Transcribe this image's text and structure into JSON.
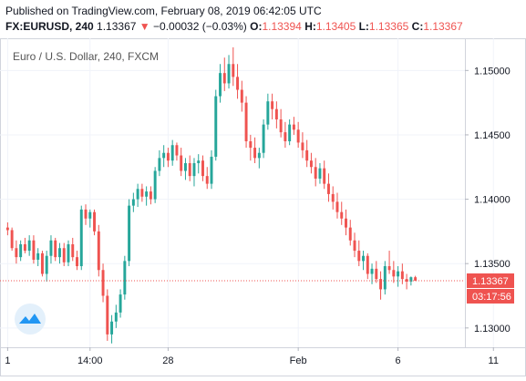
{
  "header": {
    "published": "Published on TradingView.com, February 08, 2019 06:42:05 UTC",
    "symbol": "FX:EURUSD, 240",
    "last": "1.13367",
    "change_arrow": "▼",
    "change": "−0.00032 (−0.03%)",
    "o_label": "O:",
    "o_value": "1.13394",
    "h_label": "H:",
    "h_value": "1.13405",
    "l_label": "L:",
    "l_value": "1.13365",
    "c_label": "C:",
    "c_value": "1.13367"
  },
  "chart_data": {
    "type": "candlestick",
    "title": "Euro / U.S. Dollar, 240, FXCM",
    "ylim": [
      1.1285,
      1.1525
    ],
    "y_ticks": [
      1.13,
      1.135,
      1.14,
      1.145,
      1.15
    ],
    "y_tick_labels": [
      "1.13000",
      "1.13500",
      "1.14000",
      "1.14500",
      "1.15000"
    ],
    "x_ticks": [
      {
        "label": "1",
        "index": 0
      },
      {
        "label": "14:00",
        "index": 19
      },
      {
        "label": "28",
        "index": 37
      },
      {
        "label": "Feb",
        "index": 67
      },
      {
        "label": "6",
        "index": 90
      },
      {
        "label": "11",
        "index": 112
      }
    ],
    "last_price_label": "1.13367",
    "countdown_label": "03:17:56",
    "last_price": 1.13367,
    "colors": {
      "up": "#26a69a",
      "down": "#ef5350",
      "last_line": "#ef5350",
      "countdown_bg": "#ef5350"
    },
    "candles": [
      [
        1.1378,
        1.1382,
        1.1372,
        1.1376
      ],
      [
        1.1376,
        1.1378,
        1.136,
        1.1362
      ],
      [
        1.1362,
        1.1368,
        1.135,
        1.1355
      ],
      [
        1.1355,
        1.1368,
        1.1352,
        1.1365
      ],
      [
        1.1365,
        1.137,
        1.1358,
        1.136
      ],
      [
        1.136,
        1.1372,
        1.1356,
        1.1368
      ],
      [
        1.1368,
        1.1372,
        1.135,
        1.1353
      ],
      [
        1.1353,
        1.1362,
        1.1348,
        1.1358
      ],
      [
        1.1358,
        1.136,
        1.134,
        1.1342
      ],
      [
        1.1342,
        1.136,
        1.1336,
        1.1356
      ],
      [
        1.1356,
        1.1372,
        1.135,
        1.1368
      ],
      [
        1.1368,
        1.137,
        1.1352,
        1.1355
      ],
      [
        1.1355,
        1.1366,
        1.135,
        1.1362
      ],
      [
        1.1362,
        1.1366,
        1.1348,
        1.1351
      ],
      [
        1.1351,
        1.1368,
        1.1348,
        1.1365
      ],
      [
        1.1365,
        1.137,
        1.1352,
        1.1355
      ],
      [
        1.1355,
        1.136,
        1.1345,
        1.1348
      ],
      [
        1.1348,
        1.1395,
        1.1345,
        1.1392
      ],
      [
        1.1392,
        1.1396,
        1.138,
        1.1385
      ],
      [
        1.1385,
        1.1392,
        1.1378,
        1.139
      ],
      [
        1.139,
        1.1392,
        1.1372,
        1.1375
      ],
      [
        1.1375,
        1.138,
        1.134,
        1.1345
      ],
      [
        1.1345,
        1.135,
        1.132,
        1.1325
      ],
      [
        1.1325,
        1.133,
        1.129,
        1.1295
      ],
      [
        1.1295,
        1.131,
        1.1288,
        1.1305
      ],
      [
        1.1305,
        1.1318,
        1.13,
        1.1312
      ],
      [
        1.1312,
        1.133,
        1.1308,
        1.1326
      ],
      [
        1.1326,
        1.1356,
        1.1322,
        1.1352
      ],
      [
        1.1352,
        1.14,
        1.1348,
        1.1395
      ],
      [
        1.1395,
        1.1405,
        1.139,
        1.14
      ],
      [
        1.14,
        1.1412,
        1.1394,
        1.1408
      ],
      [
        1.1408,
        1.1412,
        1.1398,
        1.1402
      ],
      [
        1.1402,
        1.141,
        1.1395,
        1.1406
      ],
      [
        1.1406,
        1.141,
        1.1396,
        1.14
      ],
      [
        1.14,
        1.1425,
        1.1397,
        1.1422
      ],
      [
        1.1422,
        1.1438,
        1.1418,
        1.1432
      ],
      [
        1.1432,
        1.1442,
        1.1425,
        1.1436
      ],
      [
        1.1436,
        1.144,
        1.1425,
        1.143
      ],
      [
        1.143,
        1.1446,
        1.1426,
        1.1442
      ],
      [
        1.1442,
        1.1444,
        1.143,
        1.1434
      ],
      [
        1.1434,
        1.144,
        1.1418,
        1.1422
      ],
      [
        1.1422,
        1.1432,
        1.1415,
        1.1428
      ],
      [
        1.1428,
        1.1434,
        1.1414,
        1.1418
      ],
      [
        1.1418,
        1.1432,
        1.141,
        1.1428
      ],
      [
        1.1428,
        1.1435,
        1.142,
        1.143
      ],
      [
        1.143,
        1.1434,
        1.1414,
        1.1418
      ],
      [
        1.1418,
        1.1425,
        1.1408,
        1.1412
      ],
      [
        1.1412,
        1.1438,
        1.1408,
        1.1433
      ],
      [
        1.1433,
        1.1485,
        1.143,
        1.148
      ],
      [
        1.148,
        1.1505,
        1.1475,
        1.1498
      ],
      [
        1.1498,
        1.151,
        1.1484,
        1.149
      ],
      [
        1.149,
        1.1512,
        1.1486,
        1.1505
      ],
      [
        1.1505,
        1.1518,
        1.1488,
        1.1495
      ],
      [
        1.1495,
        1.1505,
        1.1478,
        1.1485
      ],
      [
        1.1485,
        1.1492,
        1.1468,
        1.1475
      ],
      [
        1.1475,
        1.148,
        1.144,
        1.1445
      ],
      [
        1.1445,
        1.145,
        1.143,
        1.144
      ],
      [
        1.144,
        1.1448,
        1.1428,
        1.1432
      ],
      [
        1.1432,
        1.144,
        1.1424,
        1.1436
      ],
      [
        1.1436,
        1.1462,
        1.1432,
        1.1458
      ],
      [
        1.1458,
        1.1482,
        1.1454,
        1.1476
      ],
      [
        1.1476,
        1.1482,
        1.1462,
        1.147
      ],
      [
        1.147,
        1.1476,
        1.1455,
        1.1462
      ],
      [
        1.1462,
        1.147,
        1.1448,
        1.1452
      ],
      [
        1.1452,
        1.146,
        1.144,
        1.1445
      ],
      [
        1.1445,
        1.1462,
        1.1442,
        1.1458
      ],
      [
        1.1458,
        1.1464,
        1.145,
        1.1454
      ],
      [
        1.1454,
        1.146,
        1.144,
        1.1444
      ],
      [
        1.1444,
        1.1452,
        1.1432,
        1.1438
      ],
      [
        1.1438,
        1.1446,
        1.1425,
        1.143
      ],
      [
        1.143,
        1.1436,
        1.142,
        1.1425
      ],
      [
        1.1425,
        1.1432,
        1.141,
        1.1416
      ],
      [
        1.1416,
        1.1428,
        1.1412,
        1.1424
      ],
      [
        1.1424,
        1.143,
        1.1408,
        1.1412
      ],
      [
        1.1412,
        1.142,
        1.1398,
        1.1404
      ],
      [
        1.1404,
        1.141,
        1.1392,
        1.1398
      ],
      [
        1.1398,
        1.1405,
        1.1385,
        1.139
      ],
      [
        1.139,
        1.1398,
        1.138,
        1.1385
      ],
      [
        1.1385,
        1.1392,
        1.1372,
        1.1378
      ],
      [
        1.1378,
        1.1384,
        1.1364,
        1.1368
      ],
      [
        1.1368,
        1.1374,
        1.1355,
        1.136
      ],
      [
        1.136,
        1.1368,
        1.1348,
        1.1352
      ],
      [
        1.1352,
        1.136,
        1.1345,
        1.1356
      ],
      [
        1.1356,
        1.1358,
        1.1338,
        1.1342
      ],
      [
        1.1342,
        1.135,
        1.1334,
        1.1346
      ],
      [
        1.1346,
        1.1352,
        1.1335,
        1.1338
      ],
      [
        1.1338,
        1.1344,
        1.1322,
        1.133
      ],
      [
        1.133,
        1.1352,
        1.1326,
        1.1348
      ],
      [
        1.1348,
        1.136,
        1.1342,
        1.1345
      ],
      [
        1.1345,
        1.1352,
        1.1335,
        1.134
      ],
      [
        1.134,
        1.1348,
        1.1332,
        1.1344
      ],
      [
        1.1344,
        1.135,
        1.1334,
        1.1338
      ],
      [
        1.1338,
        1.1342,
        1.133,
        1.1336
      ],
      [
        1.1336,
        1.134,
        1.1333,
        1.13394
      ],
      [
        1.13394,
        1.13405,
        1.13365,
        1.13367
      ]
    ]
  },
  "icons": {
    "logo": "tradingview-logo-icon"
  }
}
